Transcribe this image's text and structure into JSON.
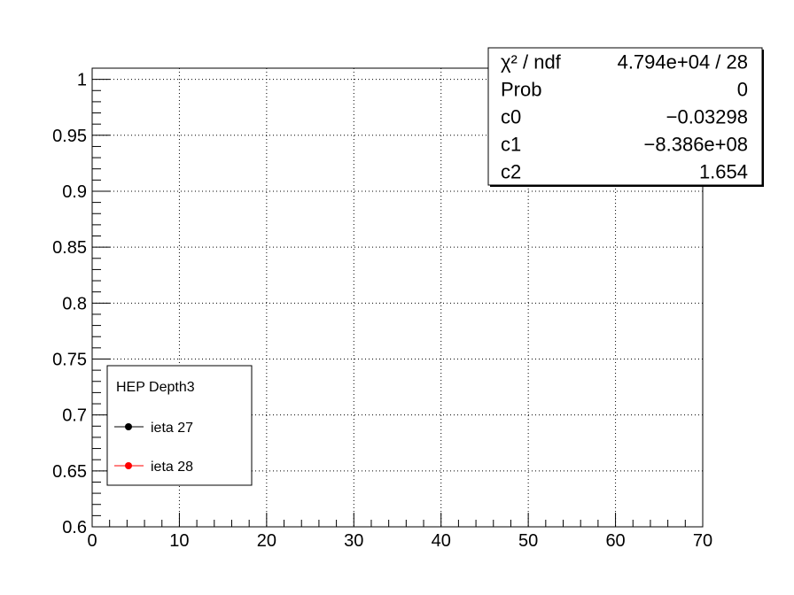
{
  "chart_data": {
    "type": "scatter",
    "title": "",
    "xlabel": "",
    "ylabel": "",
    "xlim": [
      0,
      70
    ],
    "ylim": [
      0.6,
      1.01
    ],
    "x_ticks": [
      0,
      10,
      20,
      30,
      40,
      50,
      60,
      70
    ],
    "x_tick_labels": [
      "0",
      "10",
      "20",
      "30",
      "40",
      "50",
      "60",
      "70"
    ],
    "y_ticks": [
      0.6,
      0.65,
      0.7,
      0.75,
      0.8,
      0.85,
      0.9,
      0.95,
      1.0
    ],
    "y_tick_labels": [
      "0.6",
      "0.65",
      "0.7",
      "0.75",
      "0.8",
      "0.85",
      "0.9",
      "0.95",
      "1"
    ],
    "grid": true,
    "legend_position": "bottom-left",
    "legend": {
      "header": "HEP Depth3",
      "entries": [
        {
          "label": "ieta 27",
          "color": "#000000"
        },
        {
          "label": "ieta 28",
          "color": "#ff0000"
        }
      ]
    },
    "series": [
      {
        "name": "ieta 27",
        "color": "#000000",
        "x": [],
        "y": []
      },
      {
        "name": "ieta 28",
        "color": "#ff0000",
        "x": [],
        "y": []
      }
    ],
    "stats_box": {
      "position": "top-right",
      "rows": [
        {
          "label": "χ² / ndf",
          "value": "4.794e+04 / 28"
        },
        {
          "label": "Prob",
          "value": "0"
        },
        {
          "label": "c0",
          "value": "−0.03298"
        },
        {
          "label": "c1",
          "value": "−8.386e+08"
        },
        {
          "label": "c2",
          "value": "1.654"
        }
      ]
    }
  }
}
